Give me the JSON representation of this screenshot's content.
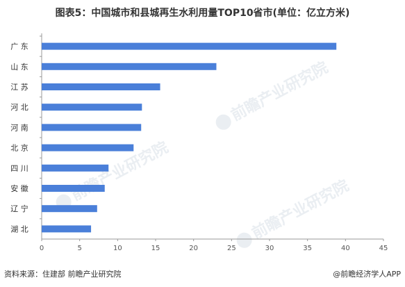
{
  "title": "图表5：中国城市和县城再生水利用量TOP10省市(单位：亿立方米)",
  "watermark": "前瞻产业研究院",
  "footer": {
    "source": "资料来源：住建部 前瞻产业研究院",
    "brand": "@前瞻经济学人APP"
  },
  "colors": {
    "bar": "#4A7FD9",
    "axis": "#999999"
  },
  "chart_data": {
    "type": "bar",
    "orientation": "horizontal",
    "categories": [
      "广 东",
      "山 东",
      "江 苏",
      "河 北",
      "河 南",
      "北 京",
      "四 川",
      "安 徽",
      "辽 宁",
      "湖 北"
    ],
    "values": [
      38.8,
      23.0,
      15.6,
      13.2,
      13.1,
      12.1,
      8.8,
      8.3,
      7.3,
      6.5
    ],
    "xlim": [
      0,
      45
    ],
    "xticks": [
      0,
      5,
      10,
      15,
      20,
      25,
      30,
      35,
      40,
      45
    ],
    "grid": false,
    "legend": "none"
  }
}
